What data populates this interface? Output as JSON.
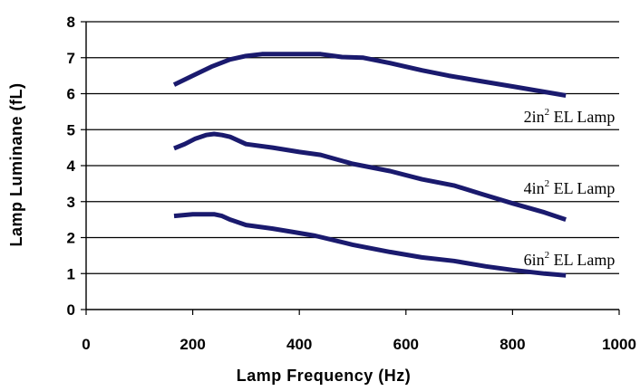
{
  "chart_data": {
    "type": "line",
    "title": "",
    "xlabel": "Lamp Frequency (Hz)",
    "ylabel": "Lamp Luminane (fL)",
    "xlim": [
      0,
      1000
    ],
    "ylim": [
      0,
      8
    ],
    "xticks": [
      0,
      200,
      400,
      600,
      800,
      1000
    ],
    "yticks": [
      0,
      1,
      2,
      3,
      4,
      5,
      6,
      7,
      8
    ],
    "grid": "horizontal",
    "line_color": "#1a1a6e",
    "series": [
      {
        "label_prefix": "2in",
        "label_sup": "2",
        "label_suffix": " EL Lamp",
        "x": [
          165,
          200,
          235,
          270,
          300,
          330,
          360,
          400,
          440,
          480,
          520,
          570,
          630,
          680,
          740,
          800,
          860,
          900
        ],
        "y": [
          6.25,
          6.5,
          6.75,
          6.95,
          7.05,
          7.1,
          7.1,
          7.1,
          7.1,
          7.02,
          7.0,
          6.85,
          6.65,
          6.5,
          6.35,
          6.2,
          6.05,
          5.95
        ]
      },
      {
        "label_prefix": "4in",
        "label_sup": "2",
        "label_suffix": " EL Lamp",
        "x": [
          165,
          185,
          205,
          225,
          240,
          255,
          270,
          300,
          350,
          400,
          440,
          500,
          570,
          630,
          690,
          740,
          800,
          860,
          900
        ],
        "y": [
          4.48,
          4.6,
          4.75,
          4.85,
          4.88,
          4.85,
          4.8,
          4.6,
          4.5,
          4.38,
          4.3,
          4.05,
          3.85,
          3.62,
          3.45,
          3.22,
          2.95,
          2.7,
          2.5
        ]
      },
      {
        "label_prefix": "6in",
        "label_sup": "2",
        "label_suffix": " EL Lamp",
        "x": [
          165,
          200,
          240,
          255,
          270,
          300,
          350,
          390,
          430,
          500,
          570,
          630,
          690,
          750,
          800,
          860,
          900
        ],
        "y": [
          2.6,
          2.65,
          2.65,
          2.6,
          2.5,
          2.35,
          2.25,
          2.15,
          2.05,
          1.8,
          1.6,
          1.45,
          1.35,
          1.2,
          1.1,
          1.0,
          0.95
        ]
      }
    ]
  }
}
